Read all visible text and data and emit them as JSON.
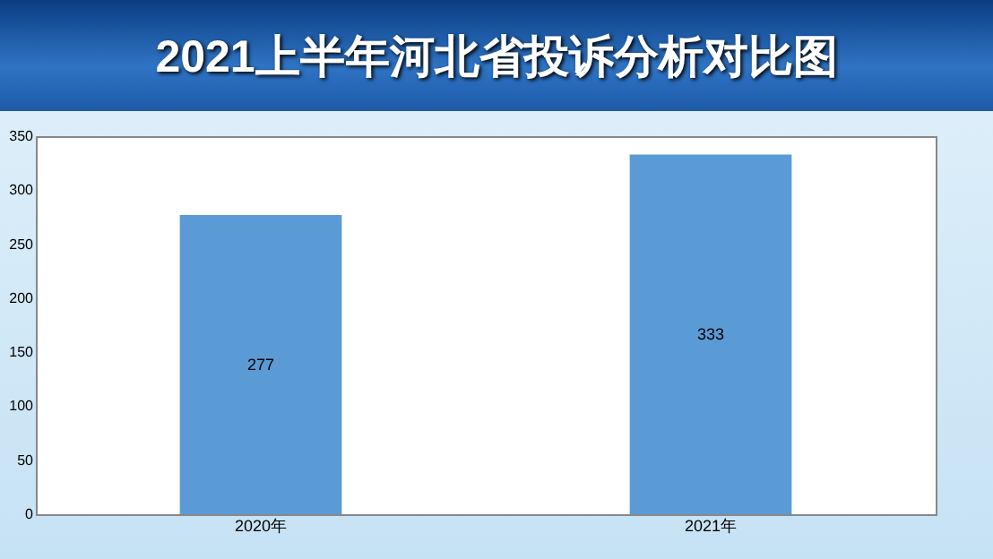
{
  "chart_data": {
    "type": "bar",
    "title": "2021上半年河北省投诉分析对比图",
    "categories": [
      "2020年",
      "2021年"
    ],
    "values": [
      277,
      333
    ],
    "color": "#5b9bd5",
    "ylim": [
      0,
      350
    ],
    "yticks": [
      0,
      50,
      100,
      150,
      200,
      250,
      300,
      350
    ],
    "data_labels": true,
    "grid": false
  }
}
